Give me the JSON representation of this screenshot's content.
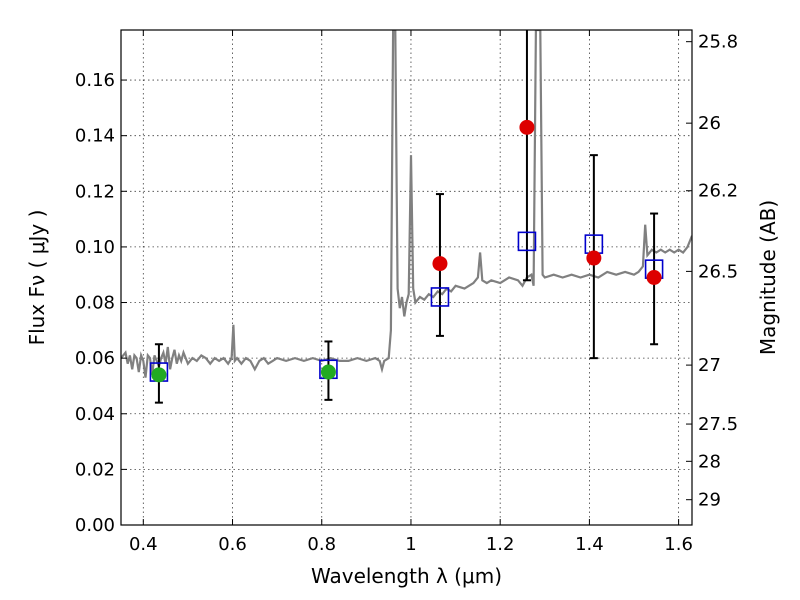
{
  "chart_data": {
    "type": "scatter",
    "xlabel": "Wavelength  λ (μm)",
    "ylabel": "Flux  Fν  ( μJy )",
    "y2label": "Magnitude (AB)",
    "xlim": [
      0.35,
      1.63
    ],
    "ylim": [
      0.0,
      0.178
    ],
    "grid": true,
    "x_ticks": [
      0.4,
      0.6,
      0.8,
      1.0,
      1.2,
      1.4,
      1.6
    ],
    "x_tick_labels": [
      "0.4",
      "0.6",
      "0.8",
      "1",
      "1.2",
      "1.4",
      "1.6"
    ],
    "y_ticks": [
      0.0,
      0.02,
      0.04,
      0.06,
      0.08,
      0.1,
      0.12,
      0.14,
      0.16
    ],
    "y_tick_labels": [
      "0.00",
      "0.02",
      "0.04",
      "0.06",
      "0.08",
      "0.10",
      "0.12",
      "0.14",
      "0.16"
    ],
    "y2_ticks": [
      {
        "label": "25.8",
        "flux": 0.1738
      },
      {
        "label": "26",
        "flux": 0.1445
      },
      {
        "label": "26.2",
        "flux": 0.1202
      },
      {
        "label": "26.5",
        "flux": 0.0912
      },
      {
        "label": "27",
        "flux": 0.0575
      },
      {
        "label": "27.5",
        "flux": 0.0363
      },
      {
        "label": "28",
        "flux": 0.0229
      },
      {
        "label": "29",
        "flux": 0.0091
      }
    ],
    "series": [
      {
        "kind": "spectrum",
        "color": "#808080",
        "points": [
          [
            0.35,
            0.06
          ],
          [
            0.36,
            0.062
          ],
          [
            0.365,
            0.058
          ],
          [
            0.37,
            0.061
          ],
          [
            0.375,
            0.056
          ],
          [
            0.38,
            0.061
          ],
          [
            0.385,
            0.06
          ],
          [
            0.39,
            0.055
          ],
          [
            0.395,
            0.061
          ],
          [
            0.4,
            0.059
          ],
          [
            0.405,
            0.053
          ],
          [
            0.41,
            0.061
          ],
          [
            0.415,
            0.06
          ],
          [
            0.42,
            0.054
          ],
          [
            0.425,
            0.061
          ],
          [
            0.43,
            0.059
          ],
          [
            0.435,
            0.057
          ],
          [
            0.44,
            0.06
          ],
          [
            0.445,
            0.062
          ],
          [
            0.45,
            0.058
          ],
          [
            0.455,
            0.064
          ],
          [
            0.46,
            0.056
          ],
          [
            0.465,
            0.06
          ],
          [
            0.47,
            0.063
          ],
          [
            0.475,
            0.058
          ],
          [
            0.48,
            0.061
          ],
          [
            0.485,
            0.059
          ],
          [
            0.49,
            0.062
          ],
          [
            0.495,
            0.06
          ],
          [
            0.5,
            0.058
          ],
          [
            0.51,
            0.06
          ],
          [
            0.52,
            0.059
          ],
          [
            0.53,
            0.061
          ],
          [
            0.54,
            0.06
          ],
          [
            0.55,
            0.058
          ],
          [
            0.56,
            0.06
          ],
          [
            0.57,
            0.059
          ],
          [
            0.58,
            0.06
          ],
          [
            0.59,
            0.058
          ],
          [
            0.598,
            0.06
          ],
          [
            0.602,
            0.072
          ],
          [
            0.605,
            0.059
          ],
          [
            0.61,
            0.06
          ],
          [
            0.62,
            0.058
          ],
          [
            0.63,
            0.06
          ],
          [
            0.64,
            0.059
          ],
          [
            0.65,
            0.056
          ],
          [
            0.66,
            0.059
          ],
          [
            0.67,
            0.06
          ],
          [
            0.68,
            0.058
          ],
          [
            0.69,
            0.059
          ],
          [
            0.7,
            0.06
          ],
          [
            0.72,
            0.059
          ],
          [
            0.74,
            0.06
          ],
          [
            0.76,
            0.059
          ],
          [
            0.78,
            0.06
          ],
          [
            0.8,
            0.059
          ],
          [
            0.82,
            0.06
          ],
          [
            0.84,
            0.059
          ],
          [
            0.86,
            0.059
          ],
          [
            0.88,
            0.06
          ],
          [
            0.9,
            0.059
          ],
          [
            0.92,
            0.06
          ],
          [
            0.93,
            0.059
          ],
          [
            0.935,
            0.056
          ],
          [
            0.94,
            0.059
          ],
          [
            0.95,
            0.06
          ],
          [
            0.955,
            0.07
          ],
          [
            0.96,
            0.178
          ],
          [
            0.965,
            0.178
          ],
          [
            0.968,
            0.12
          ],
          [
            0.97,
            0.085
          ],
          [
            0.975,
            0.078
          ],
          [
            0.98,
            0.082
          ],
          [
            0.985,
            0.075
          ],
          [
            0.99,
            0.08
          ],
          [
            0.995,
            0.083
          ],
          [
            1.0,
            0.133
          ],
          [
            1.005,
            0.085
          ],
          [
            1.01,
            0.08
          ],
          [
            1.02,
            0.082
          ],
          [
            1.03,
            0.081
          ],
          [
            1.04,
            0.083
          ],
          [
            1.05,
            0.082
          ],
          [
            1.06,
            0.084
          ],
          [
            1.07,
            0.083
          ],
          [
            1.08,
            0.085
          ],
          [
            1.09,
            0.084
          ],
          [
            1.1,
            0.086
          ],
          [
            1.12,
            0.085
          ],
          [
            1.14,
            0.087
          ],
          [
            1.15,
            0.089
          ],
          [
            1.155,
            0.098
          ],
          [
            1.16,
            0.088
          ],
          [
            1.17,
            0.087
          ],
          [
            1.18,
            0.088
          ],
          [
            1.2,
            0.087
          ],
          [
            1.22,
            0.089
          ],
          [
            1.24,
            0.088
          ],
          [
            1.25,
            0.086
          ],
          [
            1.26,
            0.089
          ],
          [
            1.27,
            0.09
          ],
          [
            1.275,
            0.086
          ],
          [
            1.28,
            0.178
          ],
          [
            1.29,
            0.178
          ],
          [
            1.295,
            0.09
          ],
          [
            1.3,
            0.089
          ],
          [
            1.32,
            0.09
          ],
          [
            1.34,
            0.089
          ],
          [
            1.36,
            0.09
          ],
          [
            1.38,
            0.089
          ],
          [
            1.4,
            0.09
          ],
          [
            1.42,
            0.089
          ],
          [
            1.44,
            0.091
          ],
          [
            1.46,
            0.09
          ],
          [
            1.48,
            0.091
          ],
          [
            1.5,
            0.09
          ],
          [
            1.51,
            0.091
          ],
          [
            1.52,
            0.093
          ],
          [
            1.525,
            0.108
          ],
          [
            1.53,
            0.097
          ],
          [
            1.54,
            0.099
          ],
          [
            1.55,
            0.098
          ],
          [
            1.56,
            0.099
          ],
          [
            1.57,
            0.098
          ],
          [
            1.58,
            0.099
          ],
          [
            1.59,
            0.098
          ],
          [
            1.6,
            0.099
          ],
          [
            1.61,
            0.098
          ],
          [
            1.62,
            0.1
          ],
          [
            1.63,
            0.104
          ]
        ]
      },
      {
        "kind": "model_squares",
        "color": "#0000cc",
        "points": [
          [
            0.435,
            0.055
          ],
          [
            0.815,
            0.056
          ],
          [
            1.065,
            0.082
          ],
          [
            1.26,
            0.102
          ],
          [
            1.41,
            0.101
          ],
          [
            1.545,
            0.092
          ]
        ]
      },
      {
        "kind": "observed_points",
        "points": [
          {
            "x": 0.435,
            "y": 0.054,
            "yerr": [
              0.044,
              0.065
            ],
            "color": "#22aa22"
          },
          {
            "x": 0.815,
            "y": 0.055,
            "yerr": [
              0.045,
              0.066
            ],
            "color": "#22aa22"
          },
          {
            "x": 1.065,
            "y": 0.094,
            "yerr": [
              0.068,
              0.119
            ],
            "color": "#dd0000"
          },
          {
            "x": 1.26,
            "y": 0.143,
            "yerr": [
              0.088,
              0.178
            ],
            "color": "#dd0000"
          },
          {
            "x": 1.41,
            "y": 0.096,
            "yerr": [
              0.06,
              0.133
            ],
            "color": "#dd0000"
          },
          {
            "x": 1.545,
            "y": 0.089,
            "yerr": [
              0.065,
              0.112
            ],
            "color": "#dd0000"
          }
        ]
      }
    ]
  }
}
